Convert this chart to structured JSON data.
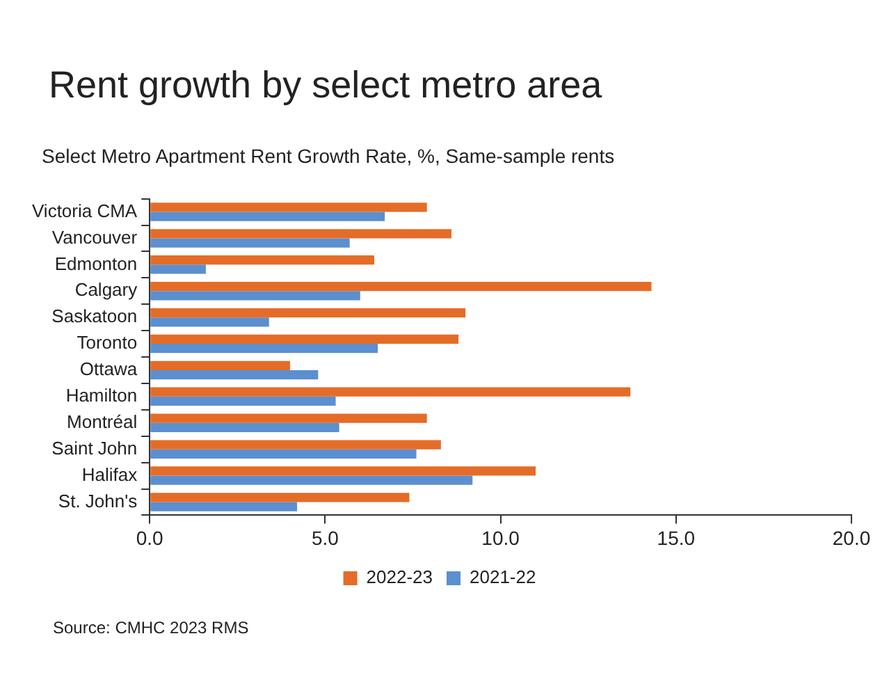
{
  "chart_data": {
    "type": "bar",
    "orientation": "horizontal",
    "title": "Rent growth by select metro area",
    "subtitle": "Select Metro Apartment Rent Growth Rate, %, Same-sample rents",
    "categories": [
      "Victoria CMA",
      "Vancouver",
      "Edmonton",
      "Calgary",
      "Saskatoon",
      "Toronto",
      "Ottawa",
      "Hamilton",
      "Montréal",
      "Saint John",
      "Halifax",
      "St. John's"
    ],
    "series": [
      {
        "name": "2022-23",
        "color": "#e46c28",
        "values": [
          7.9,
          8.6,
          6.4,
          14.3,
          9.0,
          8.8,
          4.0,
          13.7,
          7.9,
          8.3,
          11.0,
          7.4
        ]
      },
      {
        "name": "2021-22",
        "color": "#5b8fcf",
        "values": [
          6.7,
          5.7,
          1.6,
          6.0,
          3.4,
          6.5,
          4.8,
          5.3,
          5.4,
          7.6,
          9.2,
          4.2
        ]
      }
    ],
    "xlim": [
      0,
      20
    ],
    "xticks": [
      {
        "value": 0,
        "label": "0.0"
      },
      {
        "value": 5,
        "label": "5.0"
      },
      {
        "value": 10,
        "label": "10.0"
      },
      {
        "value": 15,
        "label": "15.0"
      },
      {
        "value": 20,
        "label": "20.0"
      }
    ],
    "grid": false,
    "legend": "bottom",
    "annotations": [
      "Source: CMHC 2023 RMS"
    ]
  }
}
